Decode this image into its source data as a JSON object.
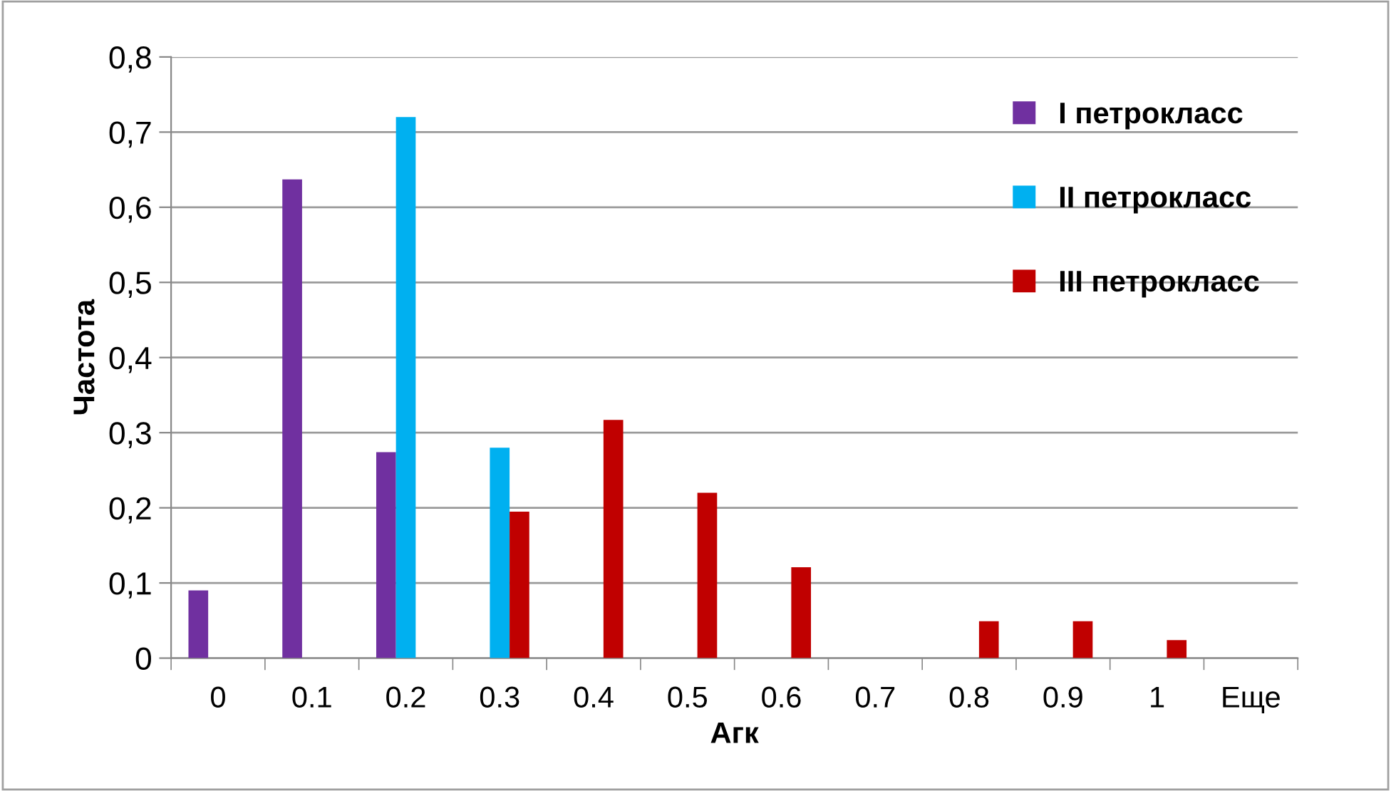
{
  "chart_data": {
    "type": "bar",
    "xlabel": "Агк",
    "ylabel": "Частота",
    "categories": [
      "0",
      "0.1",
      "0.2",
      "0.3",
      "0.4",
      "0.5",
      "0.6",
      "0.7",
      "0.8",
      "0.9",
      "1",
      "Еще"
    ],
    "series": [
      {
        "name": "I петрокласс",
        "color": "#7030a0",
        "values": [
          0.09,
          0.637,
          0.274,
          0,
          0,
          0,
          0,
          0,
          0,
          0,
          0,
          0
        ]
      },
      {
        "name": "II петрокласс",
        "color": "#00b0f0",
        "values": [
          0,
          0,
          0.72,
          0.28,
          0,
          0,
          0,
          0,
          0,
          0,
          0,
          0
        ]
      },
      {
        "name": "III петрокласс",
        "color": "#c00000",
        "values": [
          0,
          0,
          0,
          0.195,
          0.317,
          0.22,
          0.121,
          0,
          0.049,
          0.049,
          0.024,
          0
        ]
      }
    ],
    "ylim": [
      0,
      0.8
    ],
    "yticks": [
      {
        "value": 0,
        "label": "0"
      },
      {
        "value": 0.1,
        "label": "0,1"
      },
      {
        "value": 0.2,
        "label": "0,2"
      },
      {
        "value": 0.3,
        "label": "0,3"
      },
      {
        "value": 0.4,
        "label": "0,4"
      },
      {
        "value": 0.5,
        "label": "0,5"
      },
      {
        "value": 0.6,
        "label": "0,6"
      },
      {
        "value": 0.7,
        "label": "0,7"
      },
      {
        "value": 0.8,
        "label": "0,8"
      }
    ],
    "grid": "y",
    "legend": "top right"
  }
}
